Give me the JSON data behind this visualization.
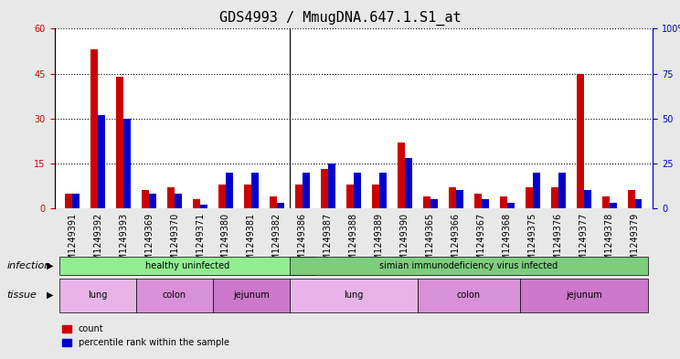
{
  "title": "GDS4993 / MmugDNA.647.1.S1_at",
  "samples": [
    "GSM1249391",
    "GSM1249392",
    "GSM1249393",
    "GSM1249369",
    "GSM1249370",
    "GSM1249371",
    "GSM1249380",
    "GSM1249381",
    "GSM1249382",
    "GSM1249386",
    "GSM1249387",
    "GSM1249388",
    "GSM1249389",
    "GSM1249390",
    "GSM1249365",
    "GSM1249366",
    "GSM1249367",
    "GSM1249368",
    "GSM1249375",
    "GSM1249376",
    "GSM1249377",
    "GSM1249378",
    "GSM1249379"
  ],
  "count_values": [
    5,
    53,
    44,
    6,
    7,
    3,
    8,
    8,
    4,
    8,
    13,
    8,
    8,
    22,
    4,
    7,
    5,
    4,
    7,
    7,
    45,
    4,
    6
  ],
  "percentile_values": [
    8,
    52,
    50,
    8,
    8,
    2,
    20,
    20,
    3,
    20,
    25,
    20,
    20,
    28,
    5,
    10,
    5,
    3,
    20,
    20,
    10,
    3,
    5
  ],
  "ylim_left": [
    0,
    60
  ],
  "ylim_right": [
    0,
    100
  ],
  "yticks_left": [
    0,
    15,
    30,
    45,
    60
  ],
  "yticks_right": [
    0,
    25,
    50,
    75,
    100
  ],
  "bar_width": 0.35,
  "count_color": "#cc0000",
  "percentile_color": "#0000cc",
  "infection_groups": [
    {
      "label": "healthy uninfected",
      "start": 0,
      "end": 9,
      "color": "#90ee90"
    },
    {
      "label": "simian immunodeficiency virus infected",
      "start": 9,
      "end": 22,
      "color": "#7dcd7d"
    }
  ],
  "tissue_groups": [
    {
      "label": "lung",
      "start": 0,
      "end": 2,
      "color": "#e8b4e8"
    },
    {
      "label": "colon",
      "start": 3,
      "end": 5,
      "color": "#d890d8"
    },
    {
      "label": "jejunum",
      "start": 6,
      "end": 8,
      "color": "#cc79cc"
    },
    {
      "label": "lung",
      "start": 9,
      "end": 13,
      "color": "#e8b4e8"
    },
    {
      "label": "colon",
      "start": 14,
      "end": 17,
      "color": "#d890d8"
    },
    {
      "label": "jejunum",
      "start": 18,
      "end": 22,
      "color": "#cc79cc"
    }
  ],
  "infection_label": "infection",
  "tissue_label": "tissue",
  "legend_count": "count",
  "legend_percentile": "percentile rank within the sample",
  "bg_color": "#e8e8e8",
  "plot_bg": "#ffffff",
  "title_fontsize": 11,
  "tick_fontsize": 7,
  "label_fontsize": 8,
  "annotation_fontsize": 8
}
